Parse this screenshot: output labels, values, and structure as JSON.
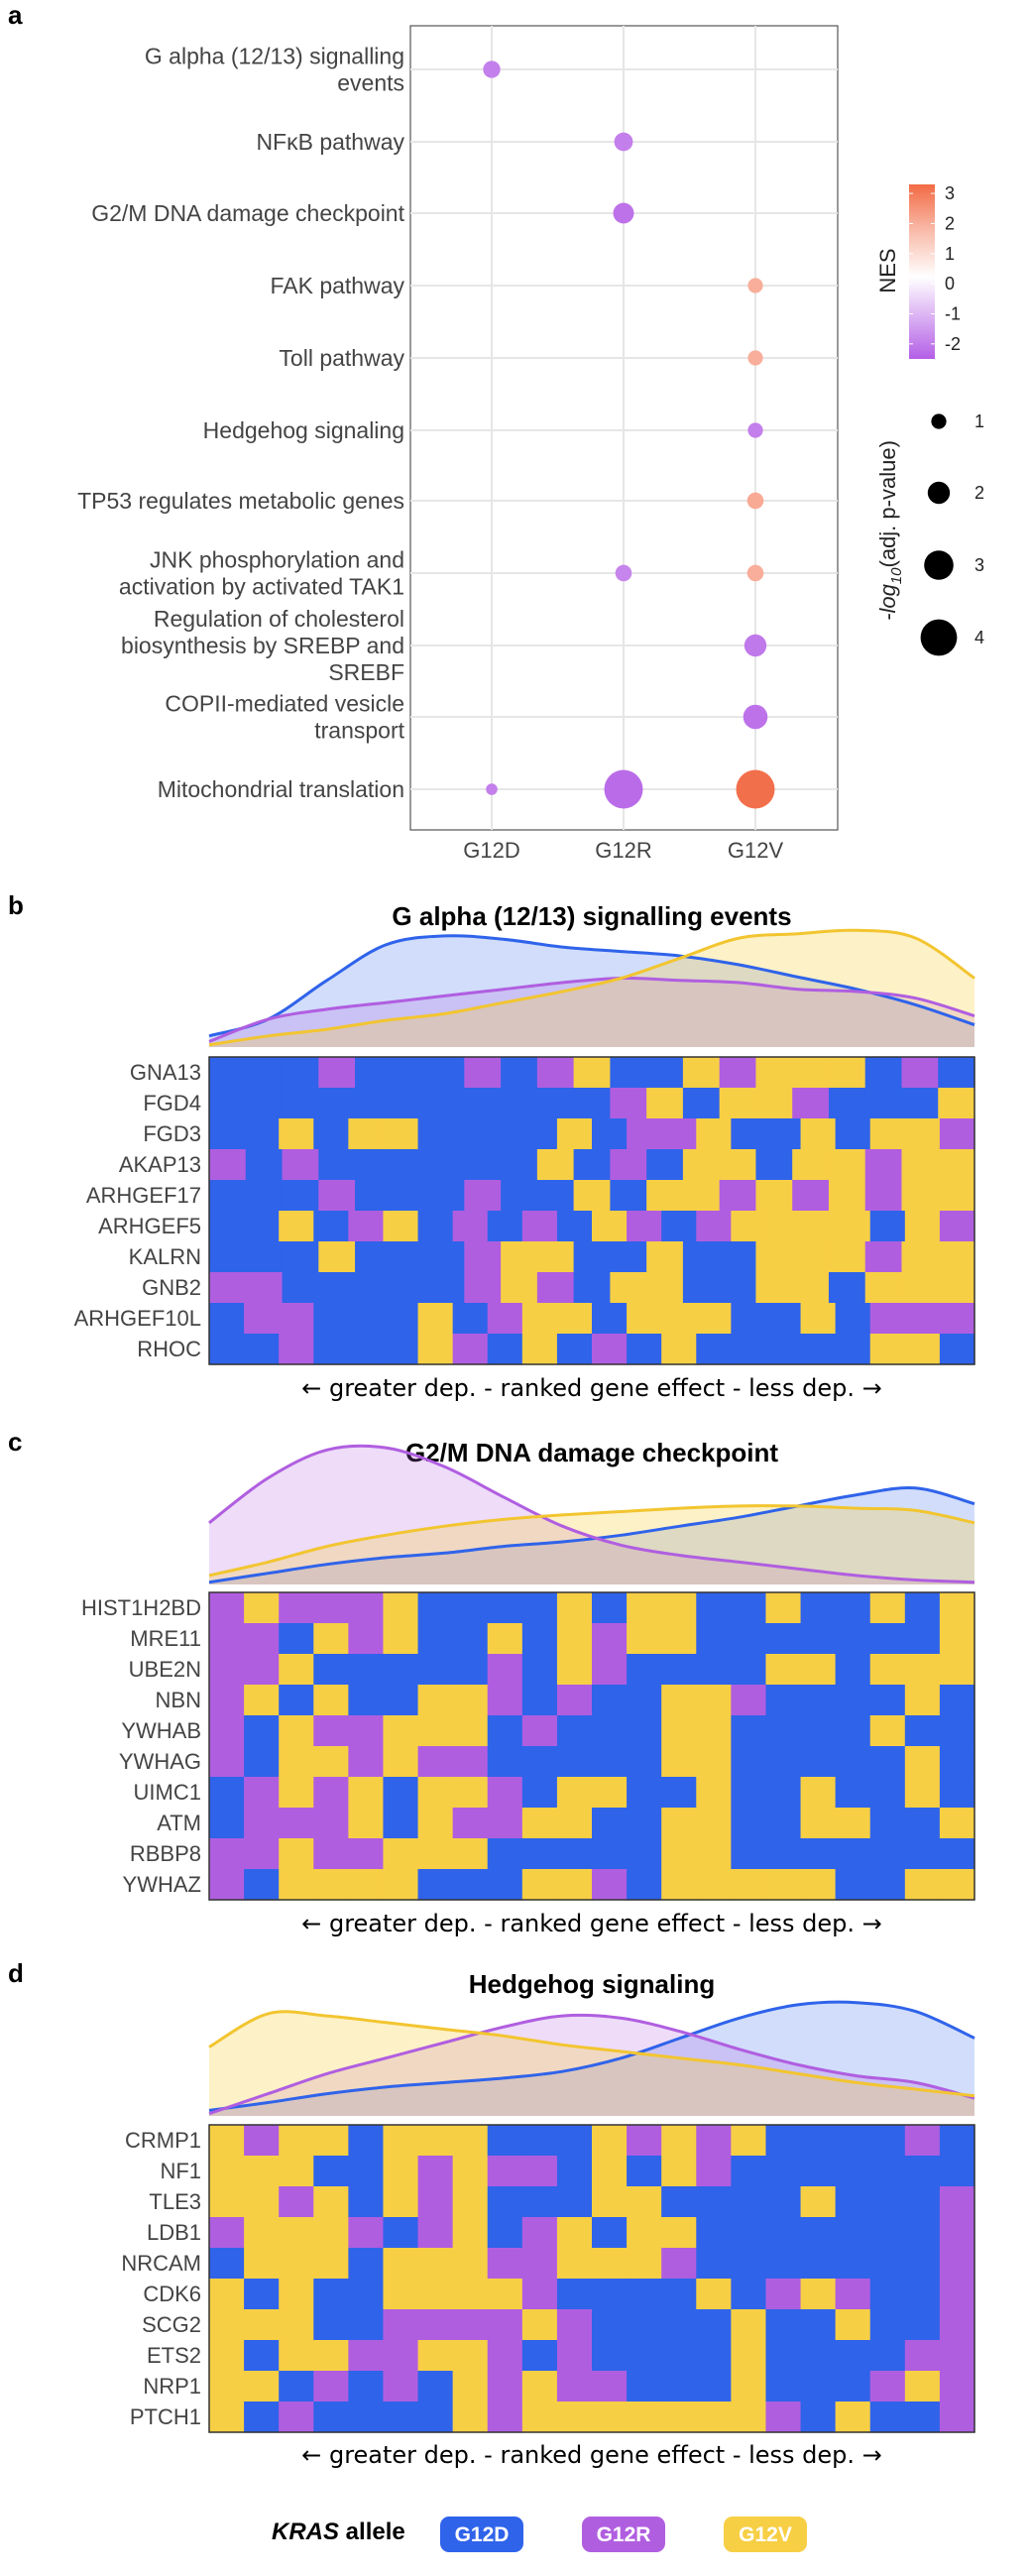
{
  "colors": {
    "G12D": "#2f63ea",
    "G12R": "#b05ee0",
    "G12V": "#f7cf45",
    "nes_low": "#b45fe6",
    "nes_mid": "#ffffff",
    "nes_high": "#f26b45"
  },
  "panels": {
    "a": "a",
    "b": "b",
    "c": "c",
    "d": "d"
  },
  "chart_data": [
    {
      "type": "scatter",
      "panel": "a",
      "title": "",
      "x_categories": [
        "G12D",
        "G12R",
        "G12V"
      ],
      "y_categories": [
        [
          "G alpha (12/13) signalling",
          "events"
        ],
        [
          "NFκB pathway"
        ],
        [
          "G2/M DNA damage checkpoint"
        ],
        [
          "FAK pathway"
        ],
        [
          "Toll pathway"
        ],
        [
          "Hedgehog signaling"
        ],
        [
          "TP53 regulates metabolic genes"
        ],
        [
          "JNK phosphorylation and",
          "activation by activated TAK1"
        ],
        [
          "Regulation of cholesterol",
          "biosynthesis by SREBP and",
          "SREBF"
        ],
        [
          "COPII-mediated vesicle",
          "transport"
        ],
        [
          "Mitochondrial translation"
        ]
      ],
      "points": [
        {
          "pathway": 0,
          "allele": "G12D",
          "nes": -2.0,
          "neglog10p": 1.3
        },
        {
          "pathway": 1,
          "allele": "G12R",
          "nes": -2.0,
          "neglog10p": 1.5
        },
        {
          "pathway": 2,
          "allele": "G12R",
          "nes": -2.2,
          "neglog10p": 1.8
        },
        {
          "pathway": 3,
          "allele": "G12V",
          "nes": 1.8,
          "neglog10p": 1.0
        },
        {
          "pathway": 4,
          "allele": "G12V",
          "nes": 1.8,
          "neglog10p": 1.0
        },
        {
          "pathway": 5,
          "allele": "G12V",
          "nes": -2.0,
          "neglog10p": 1.0
        },
        {
          "pathway": 6,
          "allele": "G12V",
          "nes": 1.9,
          "neglog10p": 1.2
        },
        {
          "pathway": 7,
          "allele": "G12R",
          "nes": -1.9,
          "neglog10p": 1.2
        },
        {
          "pathway": 7,
          "allele": "G12V",
          "nes": 1.8,
          "neglog10p": 1.2
        },
        {
          "pathway": 8,
          "allele": "G12V",
          "nes": -2.1,
          "neglog10p": 2.0
        },
        {
          "pathway": 9,
          "allele": "G12V",
          "nes": -2.2,
          "neglog10p": 2.3
        },
        {
          "pathway": 10,
          "allele": "G12D",
          "nes": -2.0,
          "neglog10p": 0.5
        },
        {
          "pathway": 10,
          "allele": "G12R",
          "nes": -2.3,
          "neglog10p": 4.3
        },
        {
          "pathway": 10,
          "allele": "G12V",
          "nes": 3.2,
          "neglog10p": 4.3
        }
      ],
      "legend_color": {
        "title": "NES",
        "ticks": [
          "3",
          "2",
          "1",
          "0",
          "-1",
          "-2"
        ],
        "tick_values": [
          3,
          2,
          1,
          0,
          -1,
          -2
        ],
        "range": [
          -2.5,
          3.3
        ]
      },
      "legend_size": {
        "title_prefix": "-log",
        "title_sub": "10",
        "title_suffix": "(adj. p-value)",
        "ticks": [
          "1",
          "2",
          "3",
          "4"
        ],
        "tick_values": [
          1,
          2,
          3,
          4
        ]
      }
    },
    {
      "type": "heatmap",
      "panel": "b",
      "title": "G alpha (12/13) signalling events",
      "xlabel": "← greater dep. - ranked gene effect - less dep. →",
      "genes": [
        "GNA13",
        "FGD4",
        "FGD3",
        "AKAP13",
        "ARHGEF17",
        "ARHGEF5",
        "KALRN",
        "GNB2",
        "ARHGEF10L",
        "RHOC"
      ],
      "grid": [
        "DDDRDDDRDRVDDVRVVVDRD",
        "DDDDDDDDDDDRVDVVRDDDV",
        "DDVDVVDDDDVDRRVDDVDVVR",
        "RDRDDDDDDVDRDVVDVVRVV",
        "DDDRDDDRDDVDVVRVRVRVV",
        "DDVDRVDRDRDVRDRVVVVDVR",
        "DDDVDDDRVVDDVDDVVVRVV",
        "RRDDDDDRVRDVVDDVVDVVV",
        "DRRDDDVDRVVDVVVDDVDRRR",
        "DDRDDDVRDVDRDVDDDDDVVD"
      ],
      "ridges": {
        "G12D": [
          0.1,
          0.25,
          0.6,
          0.92,
          1.0,
          0.97,
          0.9,
          0.86,
          0.82,
          0.74,
          0.63,
          0.52,
          0.38,
          0.2
        ],
        "G12R": [
          0.05,
          0.25,
          0.34,
          0.4,
          0.46,
          0.52,
          0.58,
          0.62,
          0.6,
          0.58,
          0.52,
          0.5,
          0.44,
          0.28
        ],
        "G12V": [
          0.02,
          0.1,
          0.16,
          0.24,
          0.3,
          0.4,
          0.5,
          0.62,
          0.8,
          0.98,
          1.02,
          1.05,
          0.98,
          0.62
        ]
      }
    },
    {
      "type": "heatmap",
      "panel": "c",
      "title": "G2/M DNA damage checkpoint",
      "xlabel": "← greater dep. - ranked gene effect - less dep. →",
      "genes": [
        "HIST1H2BD",
        "MRE11",
        "UBE2N",
        "NBN",
        "YWHAB",
        "YWHAG",
        "UIMC1",
        "ATM",
        "RBBP8",
        "YWHAZ"
      ],
      "grid": [
        "RVRRRVDDDDVDVVDDVDDVDV",
        "RRDVRVDDVDVRVVDDDDDDDV",
        "RRVDDDDDRDVRDDDDVVDVVV",
        "RVDVDDVVRDRDDVVRDDDDVD",
        "RDVRRVVVDRDDDVVDDDDVDD",
        "RDVVRVRRDDDDDVVDDDDDVD",
        "DRVRVDVVRDVVDDVDDVDDVD",
        "DRRRVDVRRVVDDVVDDVVDDV",
        "RRVRRVVVDDDDDVVDDDDDDD",
        "RDVVVVDDDVVRDVVVVVDDVV"
      ],
      "ridges": {
        "G12D": [
          0.02,
          0.1,
          0.18,
          0.24,
          0.28,
          0.34,
          0.38,
          0.44,
          0.52,
          0.6,
          0.7,
          0.8,
          0.86,
          0.72
        ],
        "G12R": [
          0.55,
          0.95,
          1.2,
          1.22,
          1.05,
          0.78,
          0.52,
          0.35,
          0.26,
          0.2,
          0.14,
          0.08,
          0.04,
          0.02
        ],
        "G12V": [
          0.08,
          0.2,
          0.34,
          0.44,
          0.52,
          0.58,
          0.62,
          0.65,
          0.68,
          0.7,
          0.7,
          0.68,
          0.66,
          0.55
        ]
      }
    },
    {
      "type": "heatmap",
      "panel": "d",
      "title": "Hedgehog signaling",
      "xlabel": "← greater dep. - ranked gene effect - less dep. →",
      "genes": [
        "CRMP1",
        "NF1",
        "TLE3",
        "LDB1",
        "NRCAM",
        "CDK6",
        "SCG2",
        "ETS2",
        "NRP1",
        "PTCH1"
      ],
      "grid": [
        "VRVVDVVVDDDVRVRVDDDDRD",
        "VVVDDVRVRRDVDVRDDDDDDD",
        "VVRVDVRVDDDVVDDDDVDDDR",
        "RVVVRDRVDRVDVVDDDDDDDR",
        "DVVVDVVVRRVVVRDDDDDDDR",
        "VDVDDVVVVRDDDDVDRVRDDR",
        "VVVDDRRRRVRDDDDVDDVDDR",
        "VDVVRRVVRDRDDDDVDDDDRR",
        "VVDRDRDVRVRRDDDVDDDRVR",
        "VDRDDDDVRVVVVVVVRDVDDR"
      ],
      "ridges": {
        "G12D": [
          0.05,
          0.12,
          0.2,
          0.26,
          0.3,
          0.34,
          0.4,
          0.52,
          0.7,
          0.88,
          1.0,
          1.02,
          0.94,
          0.7
        ],
        "G12R": [
          0.02,
          0.2,
          0.38,
          0.52,
          0.66,
          0.8,
          0.9,
          0.88,
          0.76,
          0.6,
          0.46,
          0.36,
          0.3,
          0.16
        ],
        "G12V": [
          0.62,
          0.92,
          0.9,
          0.84,
          0.78,
          0.72,
          0.64,
          0.58,
          0.52,
          0.46,
          0.38,
          0.3,
          0.24,
          0.18
        ]
      }
    }
  ],
  "legend": {
    "title": "KRAS",
    "title_suffix": " allele",
    "alleles": [
      "G12D",
      "G12R",
      "G12V"
    ]
  }
}
